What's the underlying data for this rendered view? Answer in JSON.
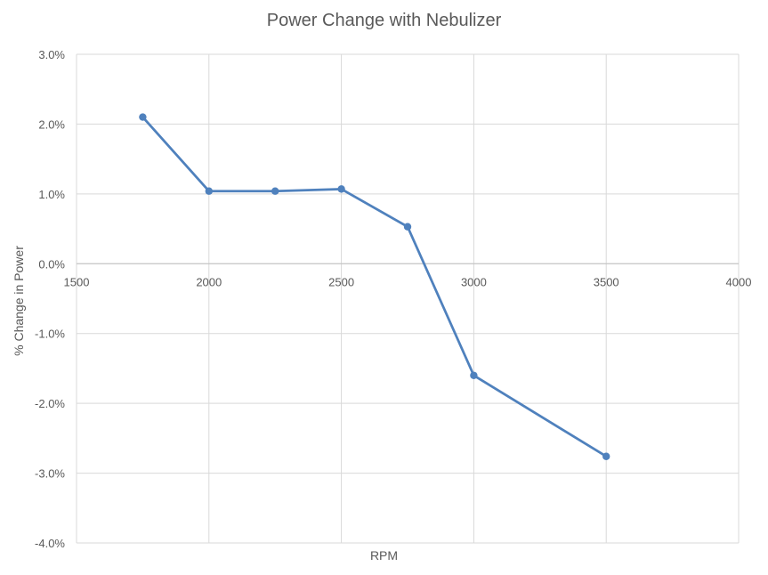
{
  "chart_data": {
    "type": "scatter",
    "title": "Power Change with Nebulizer",
    "xlabel": "RPM",
    "ylabel": "% Change in Power",
    "xlim": [
      1500,
      4000
    ],
    "ylim": [
      -0.04,
      0.03
    ],
    "x_ticks": [
      1500,
      2000,
      2500,
      3000,
      3500,
      4000
    ],
    "y_ticks": [
      0.03,
      0.02,
      0.01,
      0.0,
      -0.01,
      -0.02,
      -0.03,
      -0.04
    ],
    "x_tick_labels": [
      "1500",
      "2000",
      "2500",
      "3000",
      "3500",
      "4000"
    ],
    "y_tick_labels": [
      "3.0%",
      "2.0%",
      "1.0%",
      "0.0%",
      "-1.0%",
      "-2.0%",
      "-3.0%",
      "-4.0%"
    ],
    "grid": true,
    "series": [
      {
        "color": "#4f81bd",
        "points": [
          {
            "x": 1750,
            "y": 0.021
          },
          {
            "x": 2000,
            "y": 0.0104
          },
          {
            "x": 2250,
            "y": 0.0104
          },
          {
            "x": 2500,
            "y": 0.0107
          },
          {
            "x": 2750,
            "y": 0.0053
          },
          {
            "x": 3000,
            "y": -0.016
          },
          {
            "x": 3500,
            "y": -0.0276
          }
        ]
      }
    ]
  }
}
